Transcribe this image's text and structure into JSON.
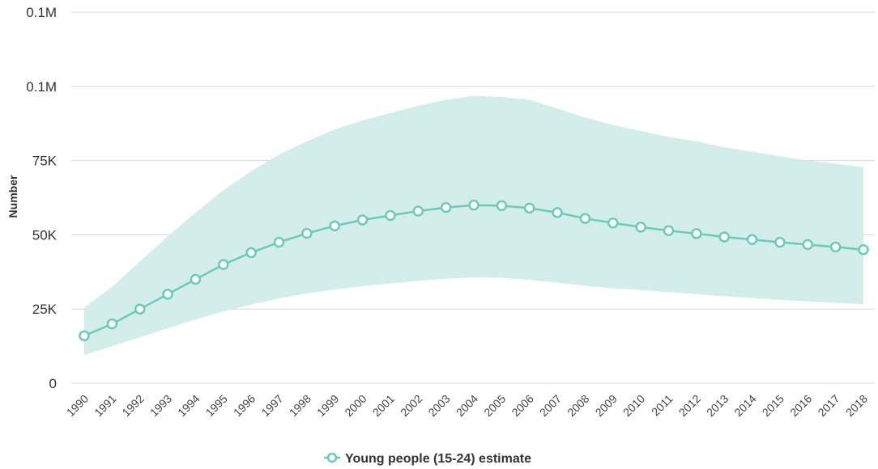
{
  "chart_data": {
    "type": "line",
    "title": "",
    "xlabel": "",
    "ylabel": "Number",
    "x": [
      "1990",
      "1991",
      "1992",
      "1993",
      "1994",
      "1995",
      "1996",
      "1997",
      "1998",
      "1999",
      "2000",
      "2001",
      "2002",
      "2003",
      "2004",
      "2005",
      "2006",
      "2007",
      "2008",
      "2009",
      "2010",
      "2011",
      "2012",
      "2013",
      "2014",
      "2015",
      "2016",
      "2017",
      "2018"
    ],
    "ylim": [
      0,
      125000
    ],
    "y_ticks": [
      {
        "value": 0,
        "label": "0"
      },
      {
        "value": 25000,
        "label": "25K"
      },
      {
        "value": 50000,
        "label": "50K"
      },
      {
        "value": 75000,
        "label": "75K"
      },
      {
        "value": 100000,
        "label": "0.1M"
      },
      {
        "value": 125000,
        "label": "0.1M"
      }
    ],
    "grid": true,
    "legend_position": "bottom-center",
    "series": [
      {
        "name": "Young people (15-24) estimate",
        "color": "#6ccabb",
        "band_color": "#d3eeea",
        "values": [
          16000,
          20000,
          25000,
          30000,
          35000,
          40000,
          44000,
          47500,
          50500,
          53000,
          55000,
          56500,
          58000,
          59200,
          60000,
          59800,
          59000,
          57500,
          55500,
          54000,
          52600,
          51400,
          50400,
          49300,
          48400,
          47500,
          46700,
          45900,
          45000
        ],
        "upper": [
          25500,
          32500,
          41000,
          49500,
          57500,
          65000,
          71500,
          77000,
          81500,
          85500,
          88500,
          91000,
          93500,
          95500,
          96800,
          96400,
          95500,
          92500,
          89500,
          87000,
          85000,
          83000,
          81500,
          79500,
          78000,
          76500,
          75000,
          74000,
          72800
        ],
        "lower": [
          9500,
          12500,
          15500,
          18500,
          21500,
          24200,
          26500,
          28500,
          30300,
          31500,
          32700,
          33600,
          34500,
          35200,
          35700,
          35500,
          34800,
          33900,
          32800,
          32000,
          31400,
          30700,
          30000,
          29300,
          28700,
          28100,
          27600,
          27100,
          26600
        ]
      }
    ]
  }
}
